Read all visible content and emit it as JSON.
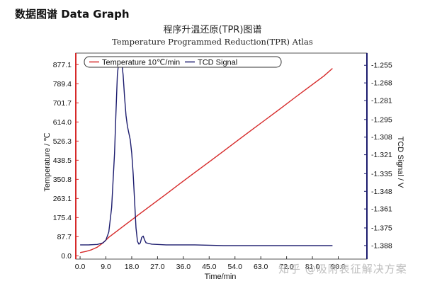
{
  "page": {
    "heading": "数据图谱 Data Graph",
    "watermark": "知乎 @吸附表征解决方案"
  },
  "chart_data": {
    "type": "line",
    "title": "程序升温还原(TPR)图谱",
    "subtitle": "Temperature Programmed Reduction(TPR) Atlas",
    "xlabel": "Time/min",
    "ylabel_left": "Temperature / ℃",
    "ylabel_right": "TCD Signal / V",
    "xlim": [
      -1.5,
      100
    ],
    "ylim_left": [
      -15,
      930
    ],
    "ylim_right": [
      -1.398,
      -1.246
    ],
    "x_ticks": [
      "0.0",
      "9.0",
      "18.0",
      "27.0",
      "36.0",
      "45.0",
      "54.0",
      "63.0",
      "72.0",
      "81.0",
      "90.0"
    ],
    "y_left_ticks": [
      "0.0",
      "87.7",
      "175.4",
      "263.1",
      "350.8",
      "438.5",
      "526.3",
      "614.0",
      "701.7",
      "789.4",
      "877.1"
    ],
    "y_right_ticks": [
      "-1.255",
      "-1.268",
      "-1.281",
      "-1.295",
      "-1.308",
      "-1.321",
      "-1.335",
      "-1.348",
      "-1.361",
      "-1.375",
      "-1.388"
    ],
    "legend_position": "top",
    "grid": false,
    "colors": {
      "temperature": "#d62a2a",
      "tcd": "#1c1c6e",
      "left_axis": "#d62a2a",
      "right_axis": "#1c1c6e"
    },
    "series": [
      {
        "name": "Temperature 10℃/min",
        "axis": "left",
        "x": [
          0,
          2,
          4,
          6,
          8,
          10,
          15,
          20,
          25,
          30,
          35,
          40,
          45,
          50,
          55,
          60,
          65,
          70,
          75,
          80,
          85,
          88
        ],
        "y": [
          15,
          20,
          28,
          40,
          60,
          85,
          135,
          185,
          234,
          283,
          333,
          382,
          431,
          480,
          530,
          579,
          628,
          677,
          727,
          776,
          825,
          860
        ]
      },
      {
        "name": "TCD Signal",
        "axis": "right",
        "x": [
          0,
          3,
          6,
          8,
          9,
          10,
          11,
          12,
          12.5,
          13,
          13.5,
          14,
          14.5,
          15,
          15.5,
          16,
          16.5,
          17,
          17.5,
          18,
          18.5,
          19,
          19.5,
          20,
          20.5,
          21,
          21.5,
          22,
          22.5,
          23,
          25,
          30,
          40,
          50,
          60,
          70,
          80,
          88
        ],
        "y": [
          -1.3875,
          -1.3875,
          -1.3872,
          -1.386,
          -1.384,
          -1.378,
          -1.36,
          -1.32,
          -1.29,
          -1.262,
          -1.252,
          -1.251,
          -1.253,
          -1.262,
          -1.278,
          -1.292,
          -1.3,
          -1.305,
          -1.31,
          -1.32,
          -1.335,
          -1.355,
          -1.375,
          -1.385,
          -1.387,
          -1.386,
          -1.382,
          -1.381,
          -1.384,
          -1.386,
          -1.387,
          -1.3875,
          -1.3875,
          -1.388,
          -1.388,
          -1.388,
          -1.388,
          -1.388
        ]
      }
    ]
  }
}
